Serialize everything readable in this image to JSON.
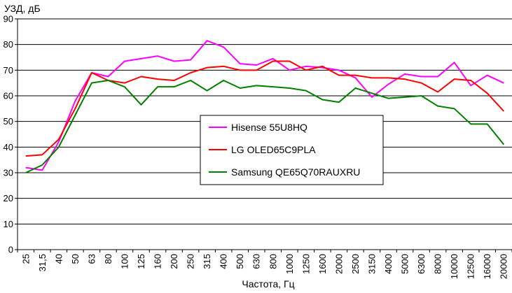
{
  "chart_data": {
    "type": "line",
    "ylabel": "УЗД, дБ",
    "xlabel": "Частота, Гц",
    "ylim": [
      0,
      90
    ],
    "yticks": [
      0,
      10,
      20,
      30,
      40,
      50,
      60,
      70,
      80,
      90
    ],
    "grid": "horizontal",
    "legend": "center",
    "categories": [
      "25",
      "31,5",
      "40",
      "50",
      "63",
      "80",
      "100",
      "125",
      "160",
      "200",
      "250",
      "315",
      "400",
      "500",
      "630",
      "800",
      "1000",
      "1250",
      "1600",
      "2000",
      "2500",
      "3150",
      "4000",
      "5000",
      "6300",
      "8000",
      "10000",
      "12500",
      "16000",
      "20000"
    ],
    "series": [
      {
        "name": "Hisense 55U8HQ",
        "color": "#ff00ff",
        "values": [
          32,
          31,
          42,
          58,
          69,
          67.5,
          73.5,
          74.5,
          75.5,
          73.5,
          74,
          81.5,
          79,
          72.5,
          72,
          74.5,
          70,
          71.5,
          71,
          70,
          67,
          59.5,
          64.5,
          68.5,
          67.5,
          67.5,
          73,
          64,
          68,
          65
        ]
      },
      {
        "name": "LG OLED65C9PLA",
        "color": "#ff0000",
        "values": [
          36.5,
          37,
          43,
          55,
          69,
          66,
          65,
          67.5,
          66.5,
          66,
          69,
          71,
          71.5,
          70,
          70,
          73.5,
          73.5,
          70,
          71.5,
          68,
          68,
          67,
          67,
          66.5,
          65,
          61.5,
          66.5,
          66,
          61,
          54
        ]
      },
      {
        "name": "Samsung QE65Q70RAUXRU",
        "color": "#007f00",
        "values": [
          30,
          33,
          40,
          52.5,
          65,
          66,
          63.5,
          56.5,
          63.5,
          63.5,
          66,
          62,
          66,
          63,
          64,
          63.5,
          63,
          62,
          58.5,
          57.5,
          63,
          61,
          59,
          59.5,
          60,
          56,
          55,
          49,
          49,
          41
        ]
      }
    ]
  }
}
